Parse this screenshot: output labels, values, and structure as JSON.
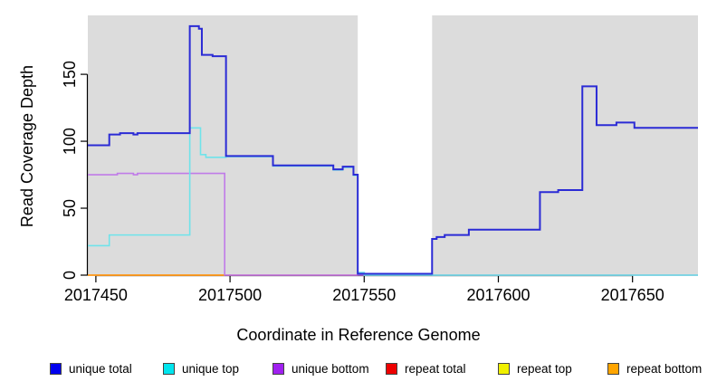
{
  "figure": {
    "x_axis_label": "Coordinate in Reference Genome",
    "y_axis_label": "Read Coverage Depth"
  },
  "legend": {
    "items": [
      {
        "label": "unique total",
        "color": "#0000EE"
      },
      {
        "label": "unique top",
        "color": "#00E5EE"
      },
      {
        "label": "unique bottom",
        "color": "#A020F0"
      },
      {
        "label": "repeat total",
        "color": "#EE0000"
      },
      {
        "label": "repeat top",
        "color": "#F0F000"
      },
      {
        "label": "repeat bottom",
        "color": "#FFA500"
      }
    ]
  },
  "chart_data": {
    "type": "line",
    "title": "",
    "xlabel": "Coordinate in Reference Genome",
    "ylabel": "Read Coverage Depth",
    "xlim": [
      2017447,
      2017674.4
    ],
    "ylim": [
      0,
      194
    ],
    "x_ticks": [
      2017450,
      2017500,
      2017550,
      2017600,
      2017650
    ],
    "y_ticks": [
      0,
      50,
      100,
      150
    ],
    "grid": false,
    "plot_bg": "#DCDCDC",
    "gap_region": {
      "x_start": 2017547.6,
      "x_end": 2017575.3,
      "color": "#FFFFFF"
    },
    "series": [
      {
        "id": "repeat-total",
        "name": "repeat total",
        "line_color": "#E06080",
        "width": 1.6,
        "points": [
          [
            2017447,
            0
          ],
          [
            2017547.6,
            0
          ]
        ]
      },
      {
        "id": "repeat-top",
        "name": "repeat top",
        "line_color": "#79BE79",
        "width": 1.6,
        "points": [
          [
            2017575.3,
            0
          ],
          [
            2017674.4,
            0
          ]
        ]
      },
      {
        "id": "repeat-bottom",
        "name": "repeat bottom",
        "line_color": "#FF9F1A",
        "width": 1.8,
        "points": [
          [
            2017447,
            0
          ],
          [
            2017498,
            0
          ]
        ]
      },
      {
        "id": "unique-bottom",
        "name": "unique bottom",
        "line_color": "#C07BE8",
        "width": 1.6,
        "points": [
          [
            2017447,
            75
          ],
          [
            2017458,
            76
          ],
          [
            2017464,
            75
          ],
          [
            2017465.5,
            76
          ],
          [
            2017498,
            0
          ],
          [
            2017674.4,
            0
          ]
        ]
      },
      {
        "id": "unique-top",
        "name": "unique top",
        "line_color": "#6FE3EA",
        "width": 1.6,
        "points": [
          [
            2017447,
            22
          ],
          [
            2017455,
            30
          ],
          [
            2017485,
            110
          ],
          [
            2017489,
            90
          ],
          [
            2017491,
            88
          ],
          [
            2017498.5,
            88.5
          ],
          [
            2017516,
            81.5
          ],
          [
            2017538.5,
            78.5
          ],
          [
            2017542,
            80.5
          ],
          [
            2017546,
            74.5
          ],
          [
            2017547.6,
            2
          ],
          [
            2017550,
            0
          ],
          [
            2017674.4,
            0
          ]
        ]
      },
      {
        "id": "unique-total",
        "name": "unique total",
        "line_color": "#2B2BD5",
        "width": 2,
        "points": [
          [
            2017447,
            97
          ],
          [
            2017455,
            105
          ],
          [
            2017459,
            106
          ],
          [
            2017464,
            105
          ],
          [
            2017465.5,
            106
          ],
          [
            2017485,
            186
          ],
          [
            2017488.4,
            184
          ],
          [
            2017489.5,
            164.5
          ],
          [
            2017493.5,
            163.5
          ],
          [
            2017498.5,
            89
          ],
          [
            2017516,
            82
          ],
          [
            2017538.5,
            79
          ],
          [
            2017542,
            81
          ],
          [
            2017546,
            75
          ],
          [
            2017547.6,
            1
          ],
          [
            2017575.3,
            27
          ],
          [
            2017577,
            28.5
          ],
          [
            2017580,
            30
          ],
          [
            2017589,
            34
          ],
          [
            2017615.5,
            62
          ],
          [
            2017622.3,
            63.5
          ],
          [
            2017631.3,
            141
          ],
          [
            2017636.6,
            112
          ],
          [
            2017644,
            114
          ],
          [
            2017650.7,
            110
          ],
          [
            2017674.4,
            110
          ]
        ]
      }
    ],
    "legend_position": "bottom"
  }
}
